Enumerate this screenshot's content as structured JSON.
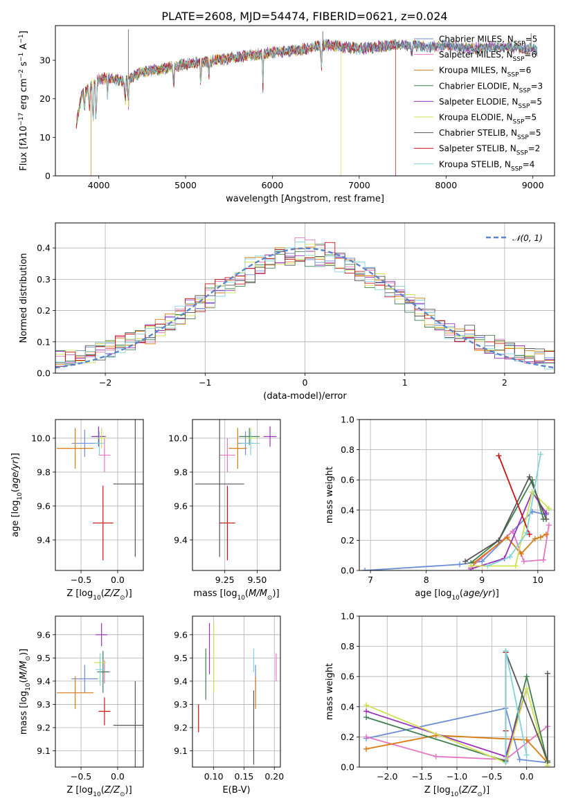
{
  "figure_title": "PLATE=2608, MJD=54474, FIBERID=0621, z=0.024",
  "colors": {
    "ChabrierMILES": "#6b8dd6",
    "SalpeterMILES": "#e377c2",
    "KroupaMILES": "#d97a10",
    "ChabrierELODIE": "#3f7f4f",
    "SalpeterELODIE": "#9b30b8",
    "KroupaELODIE": "#cfe050",
    "ChabrierSTELIB": "#555555",
    "SalpeterSTELIB": "#c81010",
    "KroupaSTELIB": "#7fd3d8"
  },
  "chart_data": [
    {
      "id": "spectrum",
      "type": "line",
      "xlabel": "wavelength [Angstrom, rest frame]",
      "ylabel": "Flux [f",
      "xlim": [
        3500,
        9250
      ],
      "ylim": [
        0,
        39
      ],
      "xticks": [
        4000,
        5000,
        6000,
        7000,
        8000,
        9000
      ],
      "yticks": [
        0,
        10,
        20,
        30
      ],
      "grid": false,
      "legend_position": "top-right",
      "legend": [
        {
          "key": "ChabrierMILES",
          "label": "Chabrier MILES, N",
          "sub": "SSP",
          "n": "=5"
        },
        {
          "key": "SalpeterMILES",
          "label": "Salpeter MILES, N",
          "sub": "SSP",
          "n": "=6"
        },
        {
          "key": "KroupaMILES",
          "label": "Kroupa MILES, N",
          "sub": "SSP",
          "n": "=6"
        },
        {
          "key": "ChabrierELODIE",
          "label": "Chabrier ELODIE, N",
          "sub": "SSP",
          "n": "=3"
        },
        {
          "key": "SalpeterELODIE",
          "label": "Salpeter ELODIE, N",
          "sub": "SSP",
          "n": "=5"
        },
        {
          "key": "KroupaELODIE",
          "label": "Kroupa ELODIE, N",
          "sub": "SSP",
          "n": "=5"
        },
        {
          "key": "ChabrierSTELIB",
          "label": "Chabrier STELIB, N",
          "sub": "SSP",
          "n": "=5"
        },
        {
          "key": "SalpeterSTELIB",
          "label": "Salpeter STELIB, N",
          "sub": "SSP",
          "n": "=2"
        },
        {
          "key": "KroupaSTELIB",
          "label": "Kroupa STELIB, N",
          "sub": "SSP",
          "n": "=4"
        }
      ],
      "continuum": [
        [
          3740,
          13
        ],
        [
          3800,
          21
        ],
        [
          3900,
          23
        ],
        [
          4000,
          25
        ],
        [
          4100,
          25.5
        ],
        [
          4300,
          24.5
        ],
        [
          4500,
          27
        ],
        [
          4800,
          28
        ],
        [
          5000,
          29
        ],
        [
          5200,
          29.5
        ],
        [
          5500,
          30.5
        ],
        [
          5800,
          31.5
        ],
        [
          6000,
          32
        ],
        [
          6300,
          32.5
        ],
        [
          6600,
          34
        ],
        [
          6800,
          33.5
        ],
        [
          7000,
          33
        ],
        [
          7200,
          33.5
        ],
        [
          7500,
          34
        ],
        [
          7800,
          33.5
        ],
        [
          8000,
          34
        ],
        [
          8300,
          33
        ],
        [
          8600,
          33.5
        ],
        [
          9000,
          33
        ],
        [
          9050,
          32.5
        ]
      ],
      "absorption_lines": [
        [
          3835,
          6
        ],
        [
          3890,
          6
        ],
        [
          3934,
          14
        ],
        [
          3969,
          14
        ],
        [
          4101,
          5
        ],
        [
          4304,
          6
        ],
        [
          4340,
          8
        ],
        [
          4861,
          6
        ],
        [
          5175,
          7
        ],
        [
          5270,
          4
        ],
        [
          5890,
          9
        ],
        [
          6563,
          7
        ],
        [
          7605,
          3
        ]
      ],
      "spikes": [
        [
          4340,
          38
        ],
        [
          6580,
          37.5
        ],
        [
          8980,
          37
        ]
      ],
      "dropouts": [
        {
          "key": "KroupaMILES",
          "x": 3910
        },
        {
          "key": "KroupaELODIE",
          "x": 6790
        },
        {
          "key": "SalpeterSTELIB",
          "x": 7420
        }
      ]
    },
    {
      "id": "residuals",
      "type": "histogram",
      "xlabel": "(data-model)/error",
      "ylabel": "Normed distribution",
      "xlim": [
        -2.5,
        2.5
      ],
      "ylim": [
        0,
        0.48
      ],
      "xticks": [
        -2,
        -1,
        0,
        1,
        2
      ],
      "yticks": [
        0.0,
        0.1,
        0.2,
        0.3,
        0.4
      ],
      "grid": true,
      "legend_position": "top-right",
      "gaussian_label": "𝒩(0, 1)",
      "gaussian_color": "#5b84cc",
      "bin_width": 0.1
    },
    {
      "id": "age_vs_Z",
      "type": "scatter",
      "xlabel": "Z [log",
      "ylabel": "age  [log",
      "xlim": [
        -0.85,
        0.35
      ],
      "ylim": [
        9.22,
        10.11
      ],
      "xticks": [
        -0.5,
        0.0
      ],
      "yticks": [
        9.4,
        9.6,
        9.8,
        10.0
      ],
      "grid": true,
      "points": [
        {
          "key": "ChabrierMILES",
          "x": -0.45,
          "xerr": 0.18,
          "y": 9.97,
          "yerr": 0.08
        },
        {
          "key": "SalpeterMILES",
          "x": -0.18,
          "xerr": 0.08,
          "y": 9.9,
          "yerr": 0.1
        },
        {
          "key": "KroupaMILES",
          "x": -0.58,
          "xerr": 0.25,
          "y": 9.94,
          "yerr": 0.12
        },
        {
          "key": "ChabrierELODIE",
          "x": -0.26,
          "xerr": 0.1,
          "y": 10.01,
          "yerr": 0.05
        },
        {
          "key": "SalpeterELODIE",
          "x": -0.26,
          "xerr": 0.08,
          "y": 10.01,
          "yerr": 0.06
        },
        {
          "key": "KroupaELODIE",
          "x": -0.22,
          "xerr": 0.06,
          "y": 10.0,
          "yerr": 0.06
        },
        {
          "key": "ChabrierSTELIB",
          "x": 0.24,
          "xerr": 0.3,
          "y": 9.73,
          "yerr": 0.43
        },
        {
          "key": "SalpeterSTELIB",
          "x": -0.2,
          "xerr": 0.14,
          "y": 9.5,
          "yerr": 0.22
        },
        {
          "key": "KroupaSTELIB",
          "x": -0.25,
          "xerr": 0.06,
          "y": 9.97,
          "yerr": 0.07
        }
      ]
    },
    {
      "id": "age_vs_mass",
      "type": "scatter",
      "xlabel": "mass [log",
      "ylabel": "",
      "xlim": [
        9.0,
        9.68
      ],
      "ylim": [
        9.22,
        10.11
      ],
      "xticks": [
        9.25,
        9.5
      ],
      "yticks": [
        9.4,
        9.6,
        9.8,
        10.0
      ],
      "grid": true,
      "points": [
        {
          "key": "ChabrierMILES",
          "x": 9.41,
          "xerr": 0.06,
          "y": 9.97,
          "yerr": 0.07
        },
        {
          "key": "SalpeterMILES",
          "x": 9.27,
          "xerr": 0.06,
          "y": 9.9,
          "yerr": 0.1
        },
        {
          "key": "KroupaMILES",
          "x": 9.35,
          "xerr": 0.07,
          "y": 9.94,
          "yerr": 0.12
        },
        {
          "key": "ChabrierELODIE",
          "x": 9.44,
          "xerr": 0.08,
          "y": 10.01,
          "yerr": 0.05
        },
        {
          "key": "SalpeterELODIE",
          "x": 9.6,
          "xerr": 0.05,
          "y": 10.01,
          "yerr": 0.06
        },
        {
          "key": "KroupaELODIE",
          "x": 9.45,
          "xerr": 0.04,
          "y": 10.0,
          "yerr": 0.06
        },
        {
          "key": "ChabrierSTELIB",
          "x": 9.21,
          "xerr": 0.19,
          "y": 9.73,
          "yerr": 0.43
        },
        {
          "key": "SalpeterSTELIB",
          "x": 9.27,
          "xerr": 0.06,
          "y": 9.5,
          "yerr": 0.22
        },
        {
          "key": "KroupaSTELIB",
          "x": 9.45,
          "xerr": 0.07,
          "y": 9.97,
          "yerr": 0.07
        }
      ]
    },
    {
      "id": "massweight_vs_age",
      "type": "line",
      "xlabel": "age  [log",
      "ylabel": "mass weight",
      "xlim": [
        6.8,
        10.3
      ],
      "ylim": [
        0,
        1
      ],
      "xticks": [
        7,
        8,
        9,
        10
      ],
      "yticks": [
        0.0,
        0.2,
        0.4,
        0.6,
        0.8,
        1.0
      ],
      "grid": true,
      "series": [
        {
          "key": "ChabrierMILES",
          "x": [
            6.9,
            8.6,
            9.0,
            9.9,
            10.15
          ],
          "y": [
            0.0,
            0.04,
            0.06,
            0.39,
            0.37
          ]
        },
        {
          "key": "SalpeterMILES",
          "x": [
            8.8,
            9.55,
            9.75,
            10.1,
            10.2
          ],
          "y": [
            0.02,
            0.26,
            0.06,
            0.07,
            0.3
          ]
        },
        {
          "key": "KroupaMILES",
          "x": [
            8.85,
            9.45,
            9.7,
            9.95,
            10.05,
            10.15
          ],
          "y": [
            0.05,
            0.22,
            0.11,
            0.21,
            0.22,
            0.24
          ]
        },
        {
          "key": "ChabrierELODIE",
          "x": [
            8.8,
            9.3,
            9.9,
            10.1
          ],
          "y": [
            0.05,
            0.2,
            0.6,
            0.34
          ]
        },
        {
          "key": "SalpeterELODIE",
          "x": [
            8.8,
            9.4,
            9.9,
            10.15
          ],
          "y": [
            0.01,
            0.08,
            0.52,
            0.38
          ]
        },
        {
          "key": "KroupaELODIE",
          "x": [
            8.8,
            9.6,
            9.9,
            10.2
          ],
          "y": [
            0.03,
            0.03,
            0.52,
            0.41
          ]
        },
        {
          "key": "ChabrierSTELIB",
          "x": [
            8.7,
            9.3,
            9.85,
            10.15
          ],
          "y": [
            0.06,
            0.2,
            0.62,
            0.34
          ]
        },
        {
          "key": "SalpeterSTELIB",
          "x": [
            9.3,
            9.85
          ],
          "y": [
            0.76,
            0.24
          ]
        },
        {
          "key": "KroupaSTELIB",
          "x": [
            9.1,
            9.5,
            9.8,
            10.05
          ],
          "y": [
            0.03,
            0.09,
            0.25,
            0.77
          ]
        }
      ]
    },
    {
      "id": "mass_vs_Z",
      "type": "scatter",
      "xlabel": "Z [log",
      "ylabel": "mass [log",
      "xlim": [
        -0.85,
        0.35
      ],
      "ylim": [
        9.03,
        9.68
      ],
      "xticks": [
        -0.5,
        0.0
      ],
      "yticks": [
        9.1,
        9.2,
        9.3,
        9.4,
        9.5,
        9.6
      ],
      "grid": true,
      "points": [
        {
          "key": "ChabrierMILES",
          "x": -0.45,
          "xerr": 0.18,
          "y": 9.41,
          "yerr": 0.06
        },
        {
          "key": "SalpeterMILES",
          "x": -0.18,
          "xerr": 0.08,
          "y": 9.44,
          "yerr": 0.05
        },
        {
          "key": "KroupaMILES",
          "x": -0.58,
          "xerr": 0.25,
          "y": 9.35,
          "yerr": 0.07
        },
        {
          "key": "ChabrierELODIE",
          "x": -0.2,
          "xerr": 0.08,
          "y": 9.44,
          "yerr": 0.09
        },
        {
          "key": "SalpeterELODIE",
          "x": -0.22,
          "xerr": 0.08,
          "y": 9.6,
          "yerr": 0.05
        },
        {
          "key": "KroupaELODIE",
          "x": -0.24,
          "xerr": 0.08,
          "y": 9.48,
          "yerr": 0.04
        },
        {
          "key": "ChabrierSTELIB",
          "x": 0.24,
          "xerr": 0.3,
          "y": 9.21,
          "yerr": 0.19
        },
        {
          "key": "SalpeterSTELIB",
          "x": -0.18,
          "xerr": 0.08,
          "y": 9.27,
          "yerr": 0.06
        },
        {
          "key": "KroupaSTELIB",
          "x": -0.24,
          "xerr": 0.06,
          "y": 9.45,
          "yerr": 0.07
        }
      ]
    },
    {
      "id": "mass_vs_ebv",
      "type": "scatter",
      "xlabel": "E(B-V)",
      "ylabel": "",
      "xlim": [
        0.065,
        0.21
      ],
      "ylim": [
        9.03,
        9.68
      ],
      "xticks": [
        0.1,
        0.15,
        0.2
      ],
      "yticks": [
        9.1,
        9.2,
        9.3,
        9.4,
        9.5,
        9.6
      ],
      "grid": true,
      "points": [
        {
          "key": "ChabrierMILES",
          "x": 0.169,
          "xerr": 0,
          "y": 9.41,
          "yerr": 0.06
        },
        {
          "key": "SalpeterMILES",
          "x": 0.203,
          "xerr": 0,
          "y": 9.46,
          "yerr": 0.06
        },
        {
          "key": "KroupaMILES",
          "x": 0.169,
          "xerr": 0,
          "y": 9.35,
          "yerr": 0.07
        },
        {
          "key": "ChabrierELODIE",
          "x": 0.087,
          "xerr": 0,
          "y": 9.43,
          "yerr": 0.11
        },
        {
          "key": "SalpeterELODIE",
          "x": 0.093,
          "xerr": 0,
          "y": 9.54,
          "yerr": 0.11
        },
        {
          "key": "KroupaELODIE",
          "x": 0.1,
          "xerr": 0,
          "y": 9.5,
          "yerr": 0.15
        },
        {
          "key": "ChabrierSTELIB",
          "x": 0.166,
          "xerr": 0,
          "y": 9.2,
          "yerr": 0.16
        },
        {
          "key": "SalpeterSTELIB",
          "x": 0.075,
          "xerr": 0,
          "y": 9.24,
          "yerr": 0.06
        },
        {
          "key": "KroupaSTELIB",
          "x": 0.166,
          "xerr": 0,
          "y": 9.49,
          "yerr": 0.05
        }
      ]
    },
    {
      "id": "massweight_vs_Z",
      "type": "line",
      "xlabel": "Z [log",
      "ylabel": "mass weight",
      "xlim": [
        -2.4,
        0.4
      ],
      "ylim": [
        0,
        1
      ],
      "xticks": [
        -2.0,
        -1.5,
        -1.0,
        -0.5,
        0.0
      ],
      "yticks": [
        0.0,
        0.2,
        0.4,
        0.6,
        0.8,
        1.0
      ],
      "grid": true,
      "series": [
        {
          "key": "ChabrierMILES",
          "x": [
            -2.3,
            -0.3,
            -0.1,
            0.3
          ],
          "y": [
            0.19,
            0.39,
            0.05,
            0.03
          ]
        },
        {
          "key": "SalpeterMILES",
          "x": [
            -2.3,
            -1.3,
            -0.3,
            0.3
          ],
          "y": [
            0.2,
            0.07,
            0.05,
            0.27
          ]
        },
        {
          "key": "KroupaMILES",
          "x": [
            -2.3,
            -1.3,
            0.0,
            0.3
          ],
          "y": [
            0.12,
            0.21,
            0.18,
            0.03
          ]
        },
        {
          "key": "ChabrierELODIE",
          "x": [
            -2.3,
            -0.3,
            0.0,
            0.3
          ],
          "y": [
            0.33,
            0.04,
            0.6,
            0.03
          ]
        },
        {
          "key": "SalpeterELODIE",
          "x": [
            -2.3,
            -0.3,
            0.0
          ],
          "y": [
            0.37,
            0.07,
            0.52
          ]
        },
        {
          "key": "KroupaELODIE",
          "x": [
            -2.3,
            -0.3,
            0.0,
            0.3
          ],
          "y": [
            0.41,
            0.03,
            0.52,
            0.01
          ]
        },
        {
          "key": "ChabrierSTELIB",
          "x": [
            -0.3,
            -0.3,
            0.3,
            0.3
          ],
          "y": [
            0.04,
            0.76,
            0.04,
            0.62
          ]
        },
        {
          "key": "SalpeterSTELIB",
          "x": [
            -0.3,
            -0.3
          ],
          "y": [
            0.24,
            0.76
          ]
        },
        {
          "key": "KroupaSTELIB",
          "x": [
            -0.3,
            -0.3,
            0.0
          ],
          "y": [
            0.03,
            0.77,
            0.08
          ]
        }
      ]
    }
  ]
}
